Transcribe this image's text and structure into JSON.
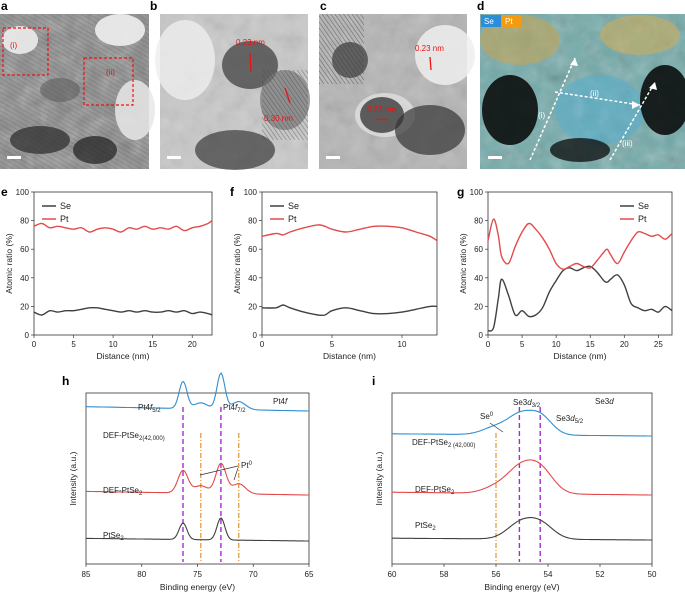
{
  "panels": {
    "a": {
      "label": "a",
      "regions": [
        "(i)",
        "(ii)"
      ]
    },
    "b": {
      "label": "b",
      "annotations": [
        "0.23 nm",
        "0.30 nm"
      ]
    },
    "c": {
      "label": "c",
      "annotations": [
        "0.23 nm",
        "0.23 nm"
      ]
    },
    "d": {
      "label": "d",
      "legend": [
        {
          "name": "Se",
          "color": "#2a8fd8"
        },
        {
          "name": "Pt",
          "color": "#f39c12"
        }
      ],
      "lines": [
        "(i)",
        "(ii)",
        "(iii)"
      ]
    }
  },
  "colors": {
    "se_line": "#404040",
    "pt_line": "#e34a4a",
    "blue": "#2f8fcf",
    "purple_dash": "#a52bd6",
    "orange_dash": "#e08a1c"
  },
  "chart_data": [
    {
      "id": "e",
      "type": "line",
      "xlabel": "Distance (nm)",
      "ylabel": "Atomic ratio (%)",
      "xlim": [
        0,
        22.5
      ],
      "ylim": [
        0,
        100
      ],
      "xticks": [
        0,
        5,
        10,
        15,
        20
      ],
      "yticks": [
        0,
        20,
        40,
        60,
        80,
        100
      ],
      "legend_position": "top-left",
      "series": [
        {
          "name": "Se",
          "x": [
            0,
            1,
            2,
            3,
            4,
            5,
            6,
            7,
            8,
            9,
            10,
            11,
            12,
            13,
            14,
            15,
            16,
            17,
            18,
            19,
            20,
            21,
            22,
            22.5
          ],
          "values": [
            16,
            14,
            17,
            16,
            17,
            17,
            18,
            19,
            19,
            18,
            17,
            16,
            17,
            16,
            17,
            16,
            16,
            17,
            16,
            17,
            15,
            16,
            15,
            14
          ]
        },
        {
          "name": "Pt",
          "x": [
            0,
            1,
            2,
            3,
            4,
            5,
            6,
            7,
            8,
            9,
            10,
            11,
            12,
            13,
            14,
            15,
            16,
            17,
            18,
            19,
            20,
            21,
            22,
            22.5
          ],
          "values": [
            76,
            78,
            75,
            76,
            75,
            74,
            75,
            72,
            74,
            75,
            74,
            72,
            75,
            74,
            76,
            74,
            75,
            74,
            76,
            73,
            75,
            76,
            78,
            80
          ]
        }
      ]
    },
    {
      "id": "f",
      "type": "line",
      "xlabel": "Distance (nm)",
      "ylabel": "Atomic ratio (%)",
      "xlim": [
        0,
        12.5
      ],
      "ylim": [
        0,
        100
      ],
      "xticks": [
        0,
        5,
        10
      ],
      "yticks": [
        0,
        20,
        40,
        60,
        80,
        100
      ],
      "legend_position": "top-left",
      "series": [
        {
          "name": "Se",
          "x": [
            0,
            1,
            1.5,
            2,
            3,
            4,
            4.5,
            5,
            6,
            7,
            8,
            9,
            10,
            11,
            12,
            12.5
          ],
          "values": [
            19,
            19,
            21,
            19,
            16,
            14,
            14,
            17,
            19,
            17,
            15,
            15,
            16,
            18,
            20,
            20
          ]
        },
        {
          "name": "Pt",
          "x": [
            0,
            1,
            1.5,
            2,
            3,
            4,
            4.5,
            5,
            6,
            7,
            8,
            9,
            10,
            11,
            12,
            12.5
          ],
          "values": [
            69,
            71,
            70,
            72,
            75,
            77,
            76,
            74,
            72,
            74,
            76,
            76,
            75,
            72,
            69,
            66
          ]
        }
      ]
    },
    {
      "id": "g",
      "type": "line",
      "xlabel": "Distance (nm)",
      "ylabel": "Atomic ratio (%)",
      "xlim": [
        0,
        27
      ],
      "ylim": [
        0,
        100
      ],
      "xticks": [
        0,
        5,
        10,
        15,
        20,
        25
      ],
      "yticks": [
        0,
        20,
        40,
        60,
        80,
        100
      ],
      "legend_position": "top-right",
      "series": [
        {
          "name": "Se",
          "x": [
            0,
            0.8,
            1.5,
            2,
            3,
            4,
            5,
            6,
            7,
            8,
            9,
            10,
            11,
            12,
            13,
            14,
            15,
            16,
            17,
            17.5,
            18,
            19,
            20,
            21,
            22,
            23,
            24,
            25,
            26,
            27
          ],
          "values": [
            3,
            5,
            25,
            39,
            28,
            14,
            17,
            13,
            14,
            19,
            30,
            38,
            45,
            47,
            45,
            47,
            48,
            44,
            38,
            37,
            39,
            42,
            35,
            22,
            19,
            17,
            18,
            16,
            20,
            17
          ]
        },
        {
          "name": "Pt",
          "x": [
            0,
            0.8,
            1.5,
            2,
            3,
            4,
            5,
            6,
            7,
            8,
            9,
            10,
            11,
            12,
            13,
            14,
            15,
            16,
            17,
            17.5,
            18,
            19,
            20,
            21,
            22,
            23,
            24,
            25,
            26,
            27
          ],
          "values": [
            66,
            81,
            70,
            55,
            50,
            62,
            72,
            78,
            74,
            68,
            60,
            50,
            46,
            48,
            50,
            48,
            47,
            52,
            58,
            60,
            56,
            50,
            58,
            66,
            72,
            71,
            69,
            70,
            67,
            71
          ]
        }
      ]
    },
    {
      "id": "h",
      "type": "line",
      "title": "Pt4f",
      "xlabel": "Binding energy (eV)",
      "ylabel": "Intensity (a.u.)",
      "xlim": [
        85,
        65
      ],
      "xticks": [
        85,
        80,
        75,
        70,
        65
      ],
      "series": [
        {
          "name": "DEF-PtSe2(42,000)",
          "color": "#2f8fcf"
        },
        {
          "name": "DEF-PtSe2",
          "color": "#e34a4a"
        },
        {
          "name": "PtSe2",
          "color": "#404040"
        }
      ],
      "peaks_dashed": [
        76.3,
        72.9
      ],
      "peaks_dashdot": [
        74.7,
        71.3
      ],
      "annotations": [
        "Pt4f5/2",
        "Pt4f7/2",
        "Pt0"
      ]
    },
    {
      "id": "i",
      "type": "line",
      "title": "Se3d",
      "xlabel": "Binding energy (eV)",
      "ylabel": "Intensity (a.u.)",
      "xlim": [
        60,
        50
      ],
      "xticks": [
        60,
        58,
        56,
        54,
        52,
        50
      ],
      "series": [
        {
          "name": "DEF-PtSe2 (42,000)",
          "color": "#2f8fcf"
        },
        {
          "name": "DEF-PtSe2",
          "color": "#e34a4a"
        },
        {
          "name": "PtSe2",
          "color": "#404040"
        }
      ],
      "peaks_dashed": [
        55.1,
        54.3
      ],
      "peaks_dashdot": [
        56.0
      ],
      "annotations": [
        "Se0",
        "Se3d3/2",
        "Se3d5/2"
      ]
    }
  ],
  "text": {
    "e": "e",
    "f": "f",
    "g": "g",
    "h": "h",
    "i": "i",
    "ylabel_ratio": "Atomic ratio (%)",
    "xlabel_dist": "Distance (nm)",
    "ylabel_int": "Intensity (a.u.)",
    "xlabel_be": "Binding energy (eV)",
    "se": "Se",
    "pt": "Pt",
    "h_title_main": "Pt4",
    "h_title_it": "f",
    "i_title_main": "Se3",
    "i_title_it": "d",
    "h_label_52": "Pt4",
    "h_label_52_it": "f",
    "h_label_52_sub": "5/2",
    "h_label_72": "Pt4",
    "h_label_72_it": "f",
    "h_label_72_sub": "7/2",
    "pt0": "Pt",
    "pt0_sup": "0",
    "se0": "Se",
    "se0_sup": "0",
    "i_label_32": "Se3",
    "i_label_32_it": "d",
    "i_label_32_sub": "3/2",
    "i_label_52": "Se3",
    "i_label_52_it": "d",
    "i_label_52_sub": "5/2",
    "h_s1_main": "DEF-PtSe",
    "h_s1_sub": "2(42,000)",
    "h_s2_main": "DEF-PtSe",
    "h_s2_sub": "2",
    "h_s3_main": "PtSe",
    "h_s3_sub": "2",
    "i_s1_main": "DEF-PtSe",
    "i_s1_sub": "2 (42,000)",
    "i_s2_main": "DEF-PtSe",
    "i_s2_sub": "2",
    "i_s3_main": "PtSe",
    "i_s3_sub": "2"
  }
}
